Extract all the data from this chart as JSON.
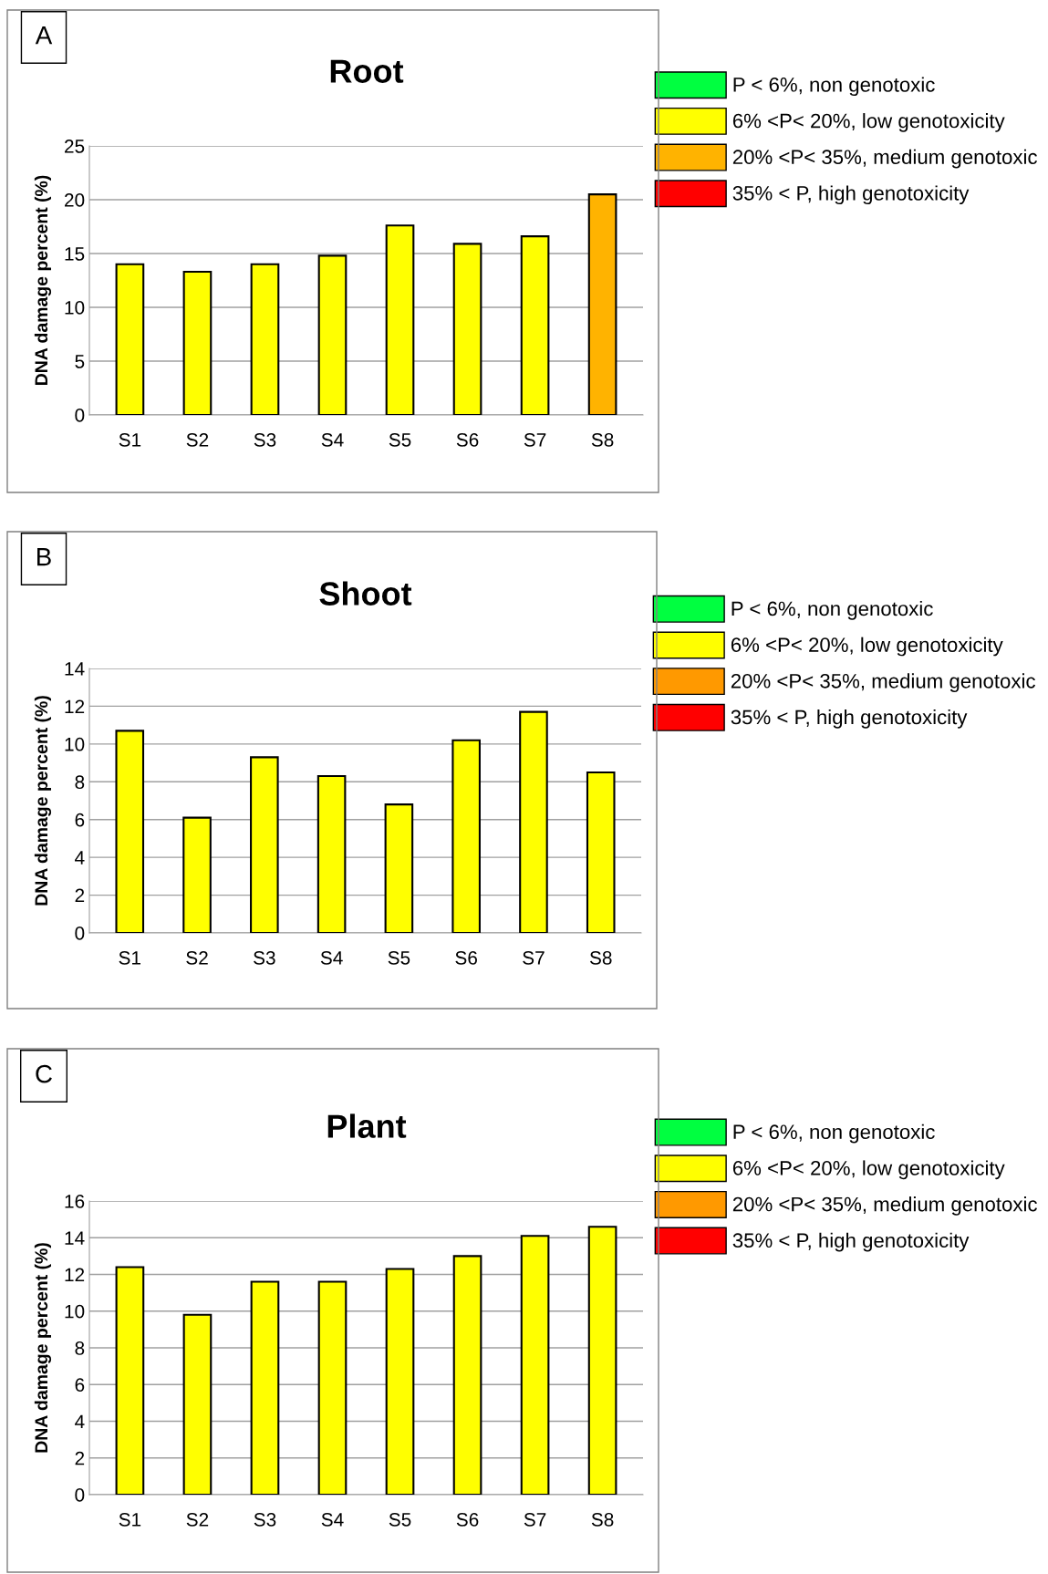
{
  "chart_data": [
    {
      "type": "bar",
      "title": "Root",
      "ylabel": "DNA damage percent (%)",
      "annotations": [
        "A"
      ],
      "categories": [
        "S1",
        "S2",
        "S3",
        "S4",
        "S5",
        "S6",
        "S7",
        "S8"
      ],
      "stacked": true,
      "grid": "y",
      "legend": "right",
      "ylim": [
        0,
        25
      ],
      "yticks": [
        0,
        5,
        10,
        15,
        20,
        25
      ],
      "series": [
        {
          "name": "P < 6%, non genotoxic",
          "color": "#00ff40",
          "values": [
            null,
            null,
            null,
            null,
            null,
            null,
            null,
            null
          ]
        },
        {
          "name": "6% <P< 20%, low genotoxicity",
          "color": "#ffff00",
          "values": [
            14.0,
            13.3,
            14.0,
            14.8,
            17.6,
            15.9,
            16.6,
            null
          ]
        },
        {
          "name": "20% <P< 35%, medium genotoxic",
          "color": "#ffb300",
          "values": [
            null,
            null,
            null,
            null,
            null,
            null,
            null,
            20.5
          ]
        },
        {
          "name": "35% < P, high genotoxicity",
          "color": "#ff0000",
          "values": [
            null,
            null,
            null,
            null,
            null,
            null,
            null,
            null
          ]
        }
      ]
    },
    {
      "type": "bar",
      "title": "Shoot",
      "ylabel": "DNA damage percent (%)",
      "annotations": [
        "B"
      ],
      "categories": [
        "S1",
        "S2",
        "S3",
        "S4",
        "S5",
        "S6",
        "S7",
        "S8"
      ],
      "stacked": true,
      "grid": "y",
      "legend": "right",
      "ylim": [
        0,
        14
      ],
      "yticks": [
        0,
        2,
        4,
        6,
        8,
        10,
        12,
        14
      ],
      "series": [
        {
          "name": "P < 6%, non genotoxic",
          "color": "#00ff40",
          "values": [
            null,
            null,
            null,
            null,
            null,
            null,
            null,
            null
          ]
        },
        {
          "name": "6% <P< 20%, low genotoxicity",
          "color": "#ffff00",
          "values": [
            10.7,
            6.1,
            9.3,
            8.3,
            6.8,
            10.2,
            11.7,
            8.5
          ]
        },
        {
          "name": "20% <P< 35%, medium genotoxic",
          "color": "#ff9900",
          "values": [
            null,
            null,
            null,
            null,
            null,
            null,
            null,
            null
          ]
        },
        {
          "name": "35% < P, high genotoxicity",
          "color": "#ff0000",
          "values": [
            null,
            null,
            null,
            null,
            null,
            null,
            null,
            null
          ]
        }
      ]
    },
    {
      "type": "bar",
      "title": "Plant",
      "ylabel": "DNA damage percent (%)",
      "annotations": [
        "C"
      ],
      "categories": [
        "S1",
        "S2",
        "S3",
        "S4",
        "S5",
        "S6",
        "S7",
        "S8"
      ],
      "stacked": true,
      "grid": "y",
      "legend": "right",
      "ylim": [
        0,
        16
      ],
      "yticks": [
        0,
        2,
        4,
        6,
        8,
        10,
        12,
        14,
        16
      ],
      "series": [
        {
          "name": "P < 6%, non genotoxic",
          "color": "#00ff40",
          "values": [
            null,
            null,
            null,
            null,
            null,
            null,
            null,
            null
          ]
        },
        {
          "name": "6% <P< 20%, low genotoxicity",
          "color": "#ffff00",
          "values": [
            12.4,
            9.8,
            11.6,
            11.6,
            12.3,
            13.0,
            14.1,
            14.6
          ]
        },
        {
          "name": "20% <P< 35%, medium genotoxic",
          "color": "#ff9900",
          "values": [
            null,
            null,
            null,
            null,
            null,
            null,
            null,
            null
          ]
        },
        {
          "name": "35% < P, high genotoxicity",
          "color": "#ff0000",
          "values": [
            null,
            null,
            null,
            null,
            null,
            null,
            null,
            null
          ]
        }
      ]
    }
  ]
}
